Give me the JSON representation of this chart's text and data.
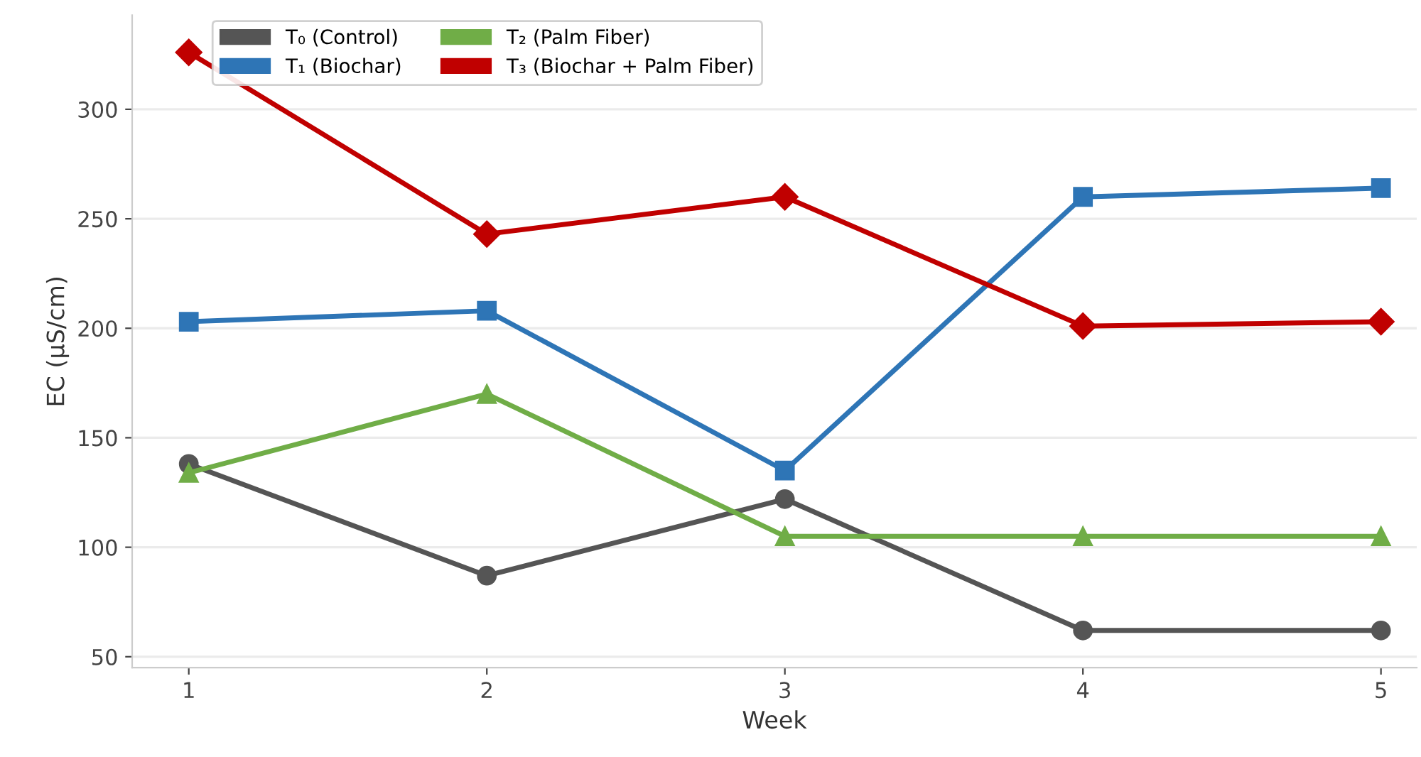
{
  "chart_data": {
    "type": "line",
    "xlabel": "Week",
    "ylabel": "EC (µS/cm)",
    "x": [
      1,
      2,
      3,
      4,
      5
    ],
    "xlim": [
      0.81,
      5.12
    ],
    "xticks": [
      1,
      2,
      3,
      4,
      5
    ],
    "ylim": [
      45,
      343
    ],
    "yticks": [
      50,
      100,
      150,
      200,
      250,
      300
    ],
    "grid": "y",
    "legend": "top left",
    "series": [
      {
        "name": "T₀ (Control)",
        "color": "#555555",
        "marker": "circle",
        "values": [
          138,
          87,
          122,
          62,
          62
        ]
      },
      {
        "name": "T₁ (Biochar)",
        "color": "#2e75b6",
        "marker": "square",
        "values": [
          203,
          208,
          135,
          260,
          264
        ]
      },
      {
        "name": "T₂ (Palm Fiber)",
        "color": "#70ad47",
        "marker": "triangle",
        "values": [
          134,
          170,
          105,
          105,
          105
        ]
      },
      {
        "name": "T₃ (Biochar + Palm Fiber)",
        "color": "#c00000",
        "marker": "diamond",
        "values": [
          326,
          243,
          260,
          201,
          203
        ]
      }
    ]
  }
}
